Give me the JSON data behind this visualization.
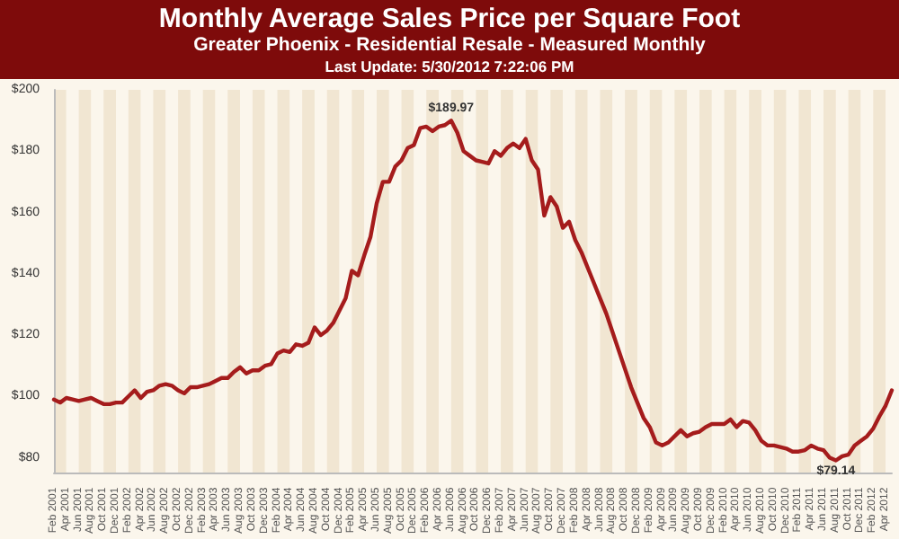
{
  "chart_data": {
    "type": "line",
    "title": "Monthly Average Sales Price per Square Foot",
    "subtitle": "Greater Phoenix - Residential Resale - Measured Monthly",
    "annotations": [
      "Last Update: 5/30/2012 7:22:06 PM"
    ],
    "categories": [
      "Feb 2001",
      null,
      "Apr 2001",
      null,
      "Jun 2001",
      null,
      "Aug 2001",
      null,
      "Oct 2001",
      null,
      "Dec 2001",
      null,
      "Feb 2002",
      null,
      "Apr 2002",
      null,
      "Jun 2002",
      null,
      "Aug 2002",
      null,
      "Oct 2002",
      null,
      "Dec 2002",
      null,
      "Feb 2003",
      null,
      "Apr 2003",
      null,
      "Jun 2003",
      null,
      "Aug 2003",
      null,
      "Oct 2003",
      null,
      "Dec 2003",
      null,
      "Feb 2004",
      null,
      "Apr 2004",
      null,
      "Jun 2004",
      null,
      "Aug 2004",
      null,
      "Oct 2004",
      null,
      "Dec 2004",
      null,
      "Feb 2005",
      null,
      "Apr 2005",
      null,
      "Jun 2005",
      null,
      "Aug 2005",
      null,
      "Oct 2005",
      null,
      "Dec 2005",
      null,
      "Feb 2006",
      null,
      "Apr 2006",
      null,
      "Jun 2006",
      null,
      "Aug 2006",
      null,
      "Oct 2006",
      null,
      "Dec 2006",
      null,
      "Feb 2007",
      null,
      "Apr 2007",
      null,
      "Jun 2007",
      null,
      "Aug 2007",
      null,
      "Oct 2007",
      null,
      "Dec 2007",
      null,
      "Feb 2008",
      null,
      "Apr 2008",
      null,
      "Jun 2008",
      null,
      "Aug 2008",
      null,
      "Oct 2008",
      null,
      "Dec 2008",
      null,
      "Feb 2009",
      null,
      "Apr 2009",
      null,
      "Jun 2009",
      null,
      "Aug 2009",
      null,
      "Oct 2009",
      null,
      "Dec 2009",
      null,
      "Feb 2010",
      null,
      "Apr 2010",
      null,
      "Jun 2010",
      null,
      "Aug 2010",
      null,
      "Oct 2010",
      null,
      "Dec 2010",
      null,
      "Feb 2011",
      null,
      "Apr 2011",
      null,
      "Jun 2011",
      null,
      "Aug 2011",
      null,
      "Oct 2011",
      null,
      "Dec 2011",
      null,
      "Feb 2012",
      null,
      "Apr 2012",
      null
    ],
    "series": [
      {
        "color": "#a51c1c",
        "values": [
          99,
          98,
          99.5,
          99,
          98.5,
          99,
          99.5,
          98.5,
          97.5,
          97.5,
          98,
          98,
          100,
          102,
          99.5,
          101.5,
          102,
          103.5,
          104,
          103.5,
          102,
          101,
          103,
          103,
          103.5,
          104,
          105,
          106,
          106,
          108,
          109.5,
          107.5,
          108.5,
          108.5,
          110,
          110.5,
          114,
          115,
          114.5,
          117,
          116.5,
          117.5,
          122.5,
          120,
          121.5,
          124,
          128,
          132,
          141,
          139.5,
          146,
          152,
          163,
          170,
          170,
          175,
          177,
          181,
          182,
          187.5,
          188,
          186.5,
          188,
          188.5,
          189.97,
          186,
          180,
          178.5,
          177,
          176.5,
          176,
          180,
          178.5,
          181,
          182.5,
          181,
          184,
          177,
          174,
          159,
          165,
          162,
          155,
          157,
          151,
          147,
          142,
          137,
          132,
          127,
          121,
          115,
          109,
          103,
          98,
          93,
          90,
          85,
          84,
          85,
          87,
          89,
          87,
          88,
          88.5,
          90,
          91,
          91,
          91,
          92.5,
          90,
          92,
          91.5,
          89,
          85.5,
          84,
          84,
          83.5,
          83,
          82,
          82,
          82.5,
          84,
          83,
          82.5,
          80,
          79.14,
          80.5,
          81,
          84,
          85.5,
          87,
          89.5,
          93.5,
          97,
          102
        ],
        "value_labels": [
          null,
          null,
          null,
          null,
          null,
          null,
          null,
          null,
          null,
          null,
          null,
          null,
          null,
          null,
          null,
          null,
          null,
          null,
          null,
          null,
          null,
          null,
          null,
          null,
          null,
          null,
          null,
          null,
          null,
          null,
          null,
          null,
          null,
          null,
          null,
          null,
          null,
          null,
          null,
          null,
          null,
          null,
          null,
          null,
          null,
          null,
          null,
          null,
          null,
          null,
          null,
          null,
          null,
          null,
          null,
          null,
          null,
          null,
          null,
          null,
          null,
          null,
          null,
          null,
          "$189.97",
          null,
          null,
          null,
          null,
          null,
          null,
          null,
          null,
          null,
          null,
          null,
          null,
          null,
          null,
          null,
          null,
          null,
          null,
          null,
          null,
          null,
          null,
          null,
          null,
          null,
          null,
          null,
          null,
          null,
          null,
          null,
          null,
          null,
          null,
          null,
          null,
          null,
          null,
          null,
          null,
          null,
          null,
          null,
          null,
          null,
          null,
          null,
          null,
          null,
          null,
          null,
          null,
          null,
          null,
          null,
          null,
          null,
          null,
          null,
          null,
          null,
          "$79.14",
          null,
          null,
          null,
          null,
          null,
          null,
          null,
          null,
          null
        ]
      }
    ],
    "ylim": [
      75,
      200
    ],
    "yticks": [
      {
        "value": 80,
        "label": "$80"
      },
      {
        "value": 100,
        "label": "$100"
      },
      {
        "value": 120,
        "label": "$120"
      },
      {
        "value": 140,
        "label": "$140"
      },
      {
        "value": 160,
        "label": "$160"
      },
      {
        "value": 180,
        "label": "$180"
      },
      {
        "value": 200,
        "label": "$200"
      }
    ],
    "grid": false,
    "marker": "none",
    "line_style": "solid"
  }
}
